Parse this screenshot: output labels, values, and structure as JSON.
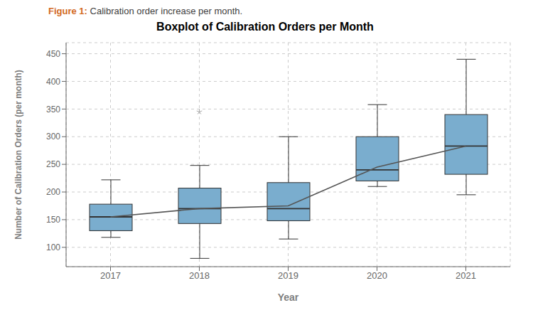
{
  "chart_data": {
    "type": "box",
    "title": "Boxplot of Calibration Orders per Month",
    "caption_label": "Figure 1:",
    "caption": "Calibration order increase per month.",
    "xlabel": "Year",
    "ylabel": "Number of Calibration Orders (per month)",
    "categories": [
      "2017",
      "2018",
      "2019",
      "2020",
      "2021"
    ],
    "ylim": [
      65,
      470
    ],
    "yticks": [
      100,
      150,
      200,
      250,
      300,
      350,
      400,
      450
    ],
    "grid": true,
    "series": [
      {
        "type": "box",
        "color": "#7aadce",
        "boxes": [
          {
            "q1": 130,
            "median": 155,
            "q3": 178,
            "whisker_low": 118,
            "whisker_high": 222,
            "fliers": []
          },
          {
            "q1": 143,
            "median": 170,
            "q3": 207,
            "whisker_low": 80,
            "whisker_high": 248,
            "fliers": [
              345
            ]
          },
          {
            "q1": 148,
            "median": 170,
            "q3": 217,
            "whisker_low": 115,
            "whisker_high": 300,
            "fliers": []
          },
          {
            "q1": 220,
            "median": 240,
            "q3": 300,
            "whisker_low": 210,
            "whisker_high": 358,
            "fliers": []
          },
          {
            "q1": 232,
            "median": 283,
            "q3": 340,
            "whisker_low": 195,
            "whisker_high": 440,
            "fliers": []
          }
        ]
      },
      {
        "type": "line",
        "color": "#555555",
        "values": [
          155,
          170,
          175,
          245,
          283
        ]
      }
    ]
  }
}
